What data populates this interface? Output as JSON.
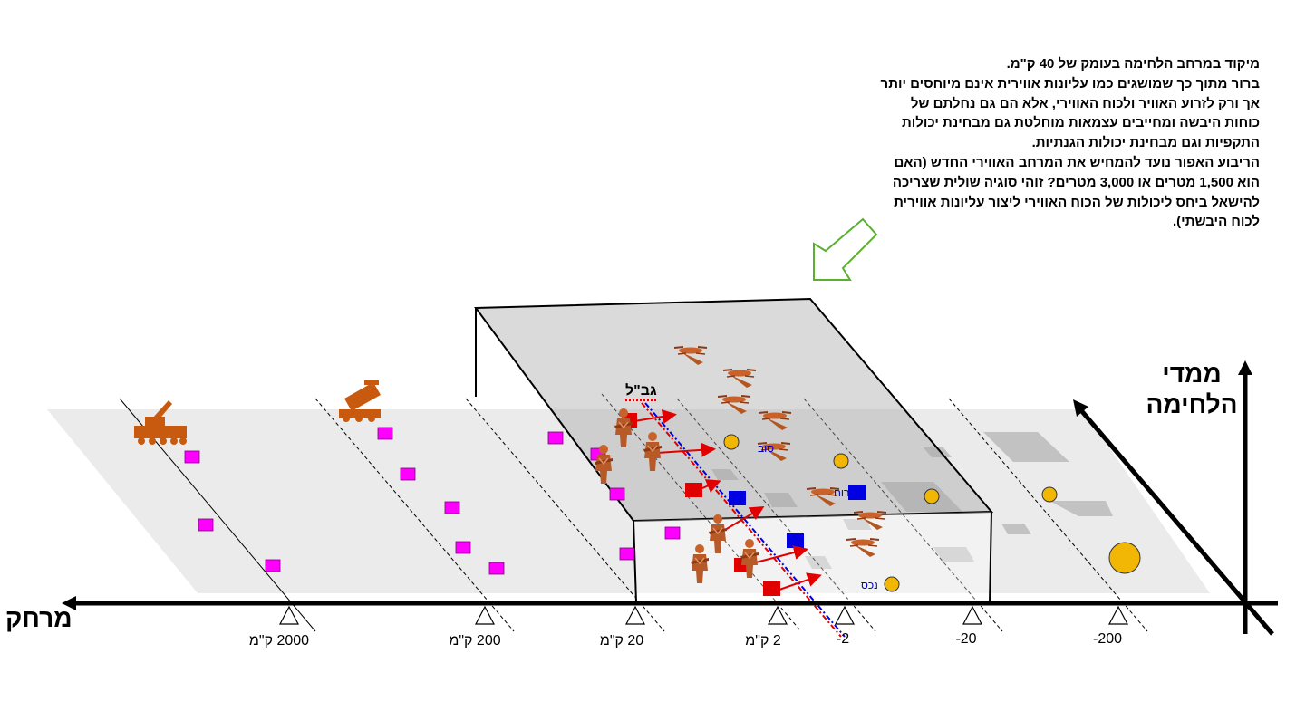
{
  "note": {
    "lines": [
      "מיקוד במרחב הלחימה בעומק של 40 ק\"מ.",
      "ברור מתוך כך שמושגים כמו עליונות אווירית אינם מיוחסים יותר",
      "אך ורק לזרוע האוויר ולכוח האווירי, אלא הם גם נחלתם של",
      "כוחות היבשה ומחייבים עצמאות מוחלטת גם מבחינת יכולות",
      "התקפיות וגם מבחינת יכולות הגנתיות.",
      "הריבוע האפור נועד להמחיש את המרחב האווירי החדש (האם",
      "הוא 1,500 מטרים או 3,000 מטרים? זוהי סוגיה שולית שצריכה",
      "להישאל ביחס ליכולות של הכוח האווירי ליצור עליונות אווירית",
      "לכוח היבשתי)."
    ]
  },
  "axes": {
    "range_title": "מרחק",
    "dimension_title_line1": "ממדי",
    "dimension_title_line2": "הלחימה"
  },
  "ticks": [
    {
      "label": "2000 ק\"מ"
    },
    {
      "label": "200 ק\"מ"
    },
    {
      "label": "20 ק\"מ"
    },
    {
      "label": "2 ק\"מ"
    },
    {
      "label": "-2"
    },
    {
      "label": "-20"
    },
    {
      "label": "-200"
    }
  ],
  "border_label": "גב\"ל",
  "position_labels": {
    "a": "נכס",
    "b": "רוח",
    "c": "סוב"
  },
  "colors": {
    "plane": "#ebebeb",
    "airspace_box": "#a8a8a8",
    "enemy_marker": "#ff00ff",
    "friendly_marker": "#0000e0",
    "hostile_marker": "#e00000",
    "target_circle": "#e8b000",
    "unit_icon": "#c85a10",
    "pointer_arrow": "#5ab030"
  },
  "icons": [
    "rocket-launcher-icon",
    "missile-launcher-icon",
    "soldier-icon",
    "drone-icon",
    "arrow-down-left-icon"
  ]
}
